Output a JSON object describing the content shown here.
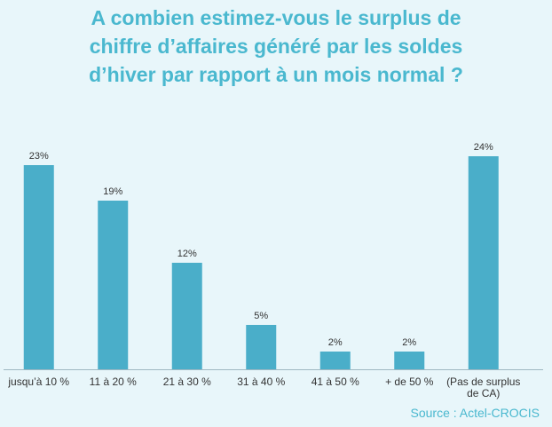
{
  "title_lines": [
    "A combien estimez-vous le surplus de",
    "chiffre d’affaires généré par les soldes",
    "d’hiver par rapport à un mois normal ?"
  ],
  "source": "Source : Actel-CROCIS",
  "colors": {
    "bar": "#4aaec9",
    "title": "#4ab8cf",
    "background": "#e8f6fa",
    "axis": "#9fb8c2",
    "text": "#333333"
  },
  "chart_data": {
    "type": "bar",
    "title": "A combien estimez-vous le surplus de chiffre d’affaires généré par les soldes d’hiver par rapport à un mois normal ?",
    "categories": [
      [
        "jusqu’à 10 %"
      ],
      [
        "11 à 20 %"
      ],
      [
        "21 à 30 %"
      ],
      [
        "31 à 40 %"
      ],
      [
        "41 à 50 %"
      ],
      [
        "+ de 50 %"
      ],
      [
        "(Pas de surplus",
        "de CA)"
      ]
    ],
    "values": [
      23,
      19,
      12,
      5,
      2,
      2,
      24
    ],
    "value_labels": [
      "23%",
      "19%",
      "12%",
      "5%",
      "2%",
      "2%",
      "24%"
    ],
    "ylim": [
      0,
      25
    ],
    "grid": false,
    "legend": "none"
  }
}
